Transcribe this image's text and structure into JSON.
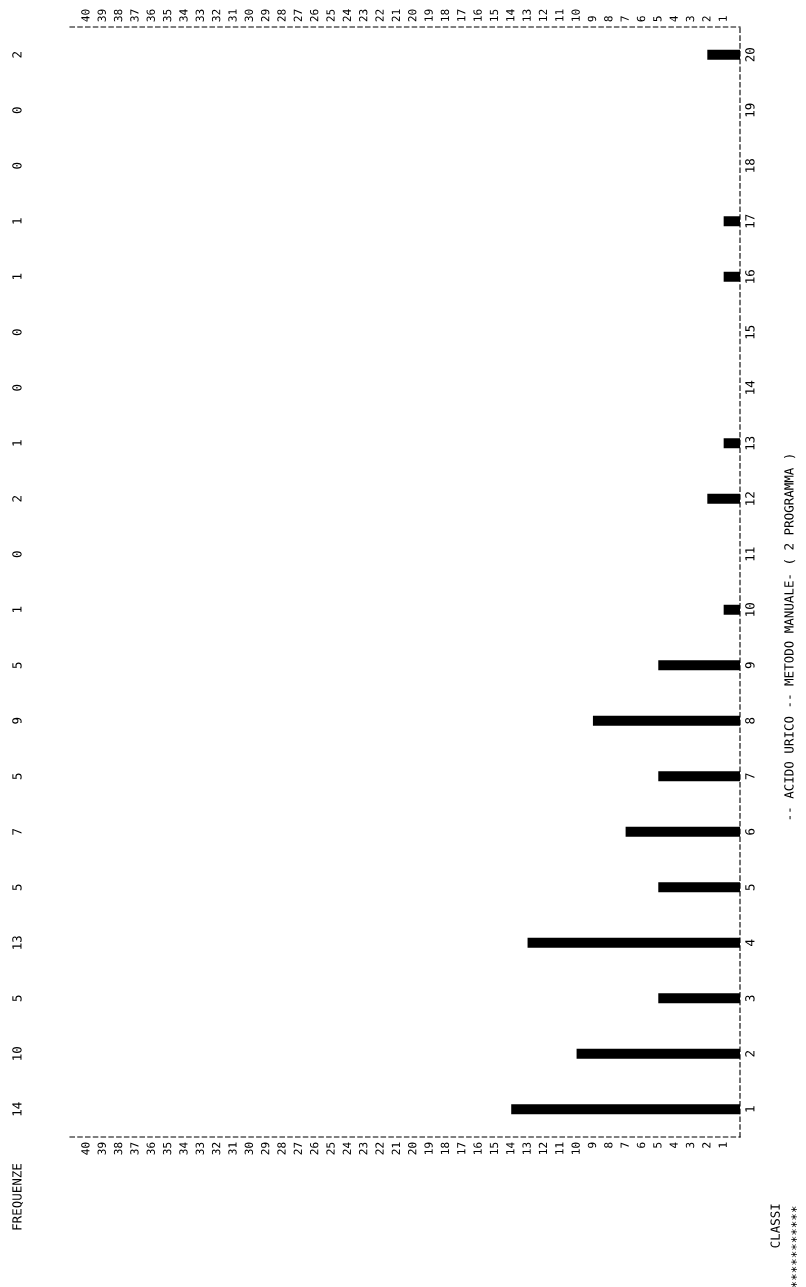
{
  "chart_data": {
    "type": "bar",
    "orientation": "horizontal",
    "title": "-- ACIDO URICO -- METODO MANUALE- ( 2 PROGRAMMA )",
    "ylabel": "CLASSI",
    "categories": [
      "20",
      "19",
      "18",
      "17",
      "16",
      "15",
      "14",
      "13",
      "12",
      "11",
      "10",
      "9",
      "8",
      "7",
      "6",
      "5",
      "4",
      "3",
      "2",
      "1"
    ],
    "values": [
      2,
      0,
      0,
      1,
      1,
      0,
      0,
      1,
      2,
      0,
      1,
      5,
      9,
      5,
      7,
      5,
      13,
      5,
      10,
      14
    ],
    "color": "#000000",
    "data_labels": true,
    "xlim": [
      41,
      0
    ],
    "xticks": [
      1,
      2,
      3,
      4,
      5,
      6,
      7,
      8,
      9,
      10,
      11,
      12,
      13,
      14,
      15,
      16,
      17,
      18,
      19,
      20,
      21,
      22,
      23,
      24,
      25,
      26,
      27,
      28,
      29,
      30,
      31,
      32,
      33,
      34,
      35,
      36,
      37,
      38,
      39,
      40
    ],
    "x2lim": [
      41,
      0
    ],
    "x2ticks": [
      1,
      2,
      3,
      4,
      5,
      6,
      7,
      8,
      9,
      10,
      11,
      12,
      13,
      14,
      15,
      16,
      17,
      18,
      19,
      20,
      21,
      22,
      23,
      24,
      25,
      26,
      27,
      28,
      29,
      30,
      31,
      32,
      33,
      34,
      35,
      36,
      37,
      38,
      39,
      40
    ],
    "grid": false,
    "annotations": [
      "FREQUENZE",
      "***********"
    ]
  }
}
